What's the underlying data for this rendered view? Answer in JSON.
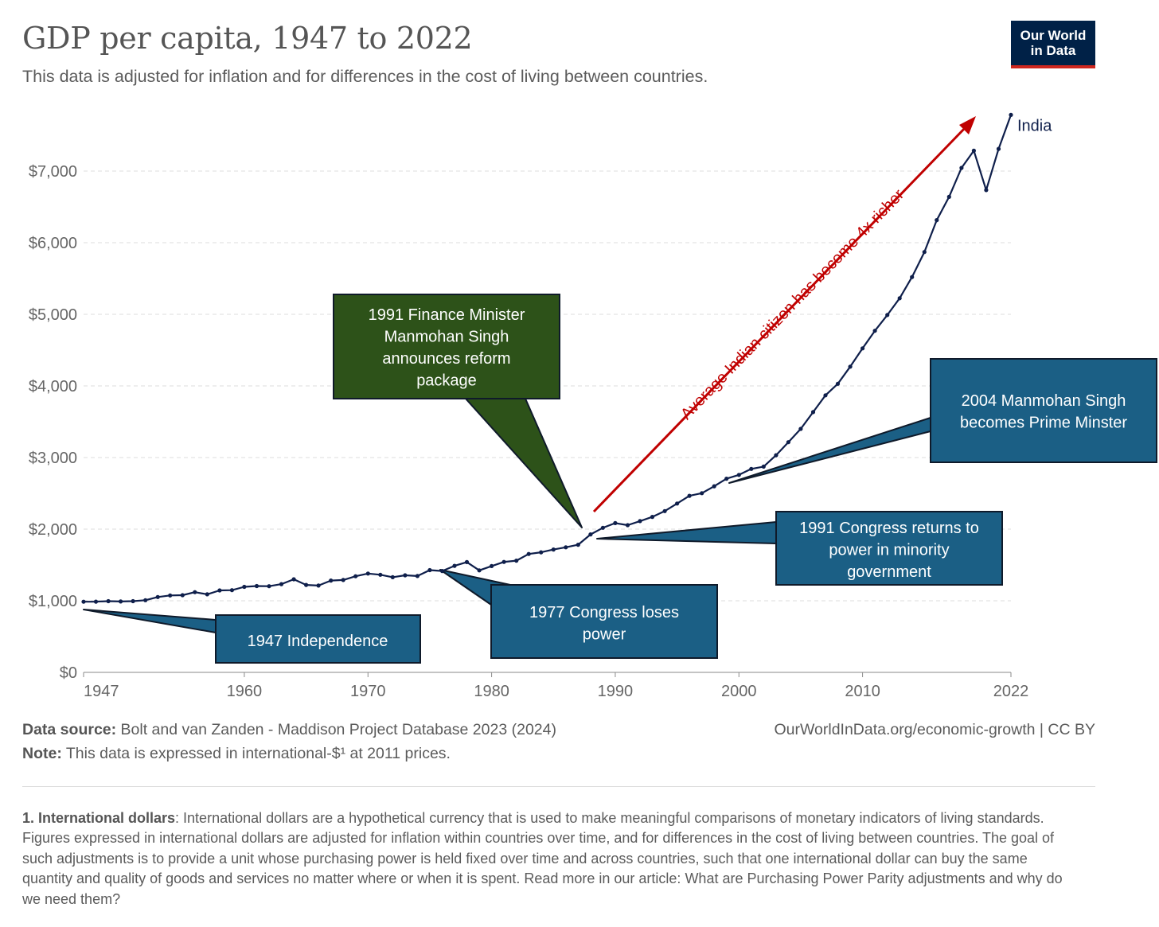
{
  "header": {
    "title": "GDP per capita, 1947 to 2022",
    "subtitle": "This data is adjusted for inflation and for differences in the cost of living between countries.",
    "logo_line1": "Our World",
    "logo_line2": "in Data"
  },
  "colors": {
    "series": "#0f1f4b",
    "brand_navy": "#002147",
    "brand_red": "#ce261e",
    "annotation_blue": "#1b5f85",
    "annotation_green": "#2d5219",
    "arrow_red": "#c00000"
  },
  "chart_data": {
    "type": "line",
    "title": "GDP per capita, 1947 to 2022",
    "ylim": [
      0,
      7800
    ],
    "xlim": [
      1947,
      2022
    ],
    "grid": true,
    "y_ticks": [
      0,
      1000,
      2000,
      3000,
      4000,
      5000,
      6000,
      7000
    ],
    "y_tick_labels": [
      "$0",
      "$1,000",
      "$2,000",
      "$3,000",
      "$4,000",
      "$5,000",
      "$6,000",
      "$7,000"
    ],
    "x_ticks": [
      1947,
      1960,
      1970,
      1980,
      1990,
      2000,
      2010,
      2022
    ],
    "x_tick_labels": [
      "1947",
      "1960",
      "1970",
      "1980",
      "1990",
      "2000",
      "2010",
      "2022"
    ],
    "series": [
      {
        "name": "India",
        "x": [
          1947,
          1948,
          1949,
          1950,
          1951,
          1952,
          1953,
          1954,
          1955,
          1956,
          1957,
          1958,
          1959,
          1960,
          1961,
          1962,
          1963,
          1964,
          1965,
          1966,
          1967,
          1968,
          1969,
          1970,
          1971,
          1972,
          1973,
          1974,
          1975,
          1976,
          1977,
          1978,
          1979,
          1980,
          1981,
          1982,
          1983,
          1984,
          1985,
          1986,
          1987,
          1988,
          1989,
          1990,
          1991,
          1992,
          1993,
          1994,
          1995,
          1996,
          1997,
          1998,
          1999,
          2000,
          2001,
          2002,
          2003,
          2004,
          2005,
          2006,
          2007,
          2008,
          2009,
          2010,
          2011,
          2012,
          2013,
          2014,
          2015,
          2016,
          2017,
          2018,
          2019,
          2020,
          2021,
          2022
        ],
        "values": [
          987,
          988,
          995,
          990,
          994,
          1008,
          1052,
          1074,
          1078,
          1120,
          1090,
          1145,
          1148,
          1195,
          1205,
          1203,
          1232,
          1300,
          1221,
          1212,
          1282,
          1290,
          1342,
          1380,
          1363,
          1329,
          1355,
          1346,
          1428,
          1415,
          1488,
          1540,
          1425,
          1484,
          1542,
          1560,
          1653,
          1677,
          1715,
          1747,
          1782,
          1927,
          2019,
          2085,
          2055,
          2112,
          2171,
          2252,
          2358,
          2465,
          2502,
          2599,
          2705,
          2758,
          2841,
          2873,
          3032,
          3215,
          3400,
          3635,
          3869,
          4030,
          4269,
          4525,
          4770,
          4990,
          5225,
          5520,
          5870,
          6315,
          6640,
          7045,
          7285,
          6735,
          7310,
          7785
        ]
      }
    ],
    "series_label": "India",
    "annotations": [
      {
        "text": "1947 Independence",
        "lines": [
          "1947 Independence"
        ]
      },
      {
        "text": "1977 Congress loses power",
        "lines": [
          "1977 Congress loses",
          "power"
        ]
      },
      {
        "text": "1991 Finance Minister Manmohan Singh announces reform package",
        "lines": [
          "1991 Finance Minister",
          "Manmohan Singh",
          "announces reform",
          "package"
        ]
      },
      {
        "text": "1991 Congress returns to power in minority government",
        "lines": [
          "1991 Congress returns to",
          "power in minority",
          "government"
        ]
      },
      {
        "text": "2004 Manmohan Singh becomes Prime Minster",
        "lines": [
          "2004 Manmohan Singh",
          "becomes Prime Minster"
        ]
      }
    ],
    "arrow_label": "Average Indian citizen has become 4x richer"
  },
  "footer": {
    "source_label": "Data source:",
    "source_text": " Bolt and van Zanden - Maddison Project Database 2023 (2024)",
    "attribution": "OurWorldInData.org/economic-growth | CC BY",
    "note_label": "Note:",
    "note_text": " This data is expressed in international-$¹ at 2011 prices."
  },
  "footnote": {
    "label": "1. International dollars",
    "text": ": International dollars are a hypothetical currency that is used to make meaningful comparisons of monetary indicators of living standards. Figures expressed in international dollars are adjusted for inflation within countries over time, and for differences in the cost of living between countries. The goal of such adjustments is to provide a unit whose purchasing power is held fixed over time and across countries, such that one international dollar can buy the same quantity and quality of goods and services no matter where or when it is spent. Read more in our article: What are Purchasing Power Parity adjustments and why do we need them?"
  }
}
